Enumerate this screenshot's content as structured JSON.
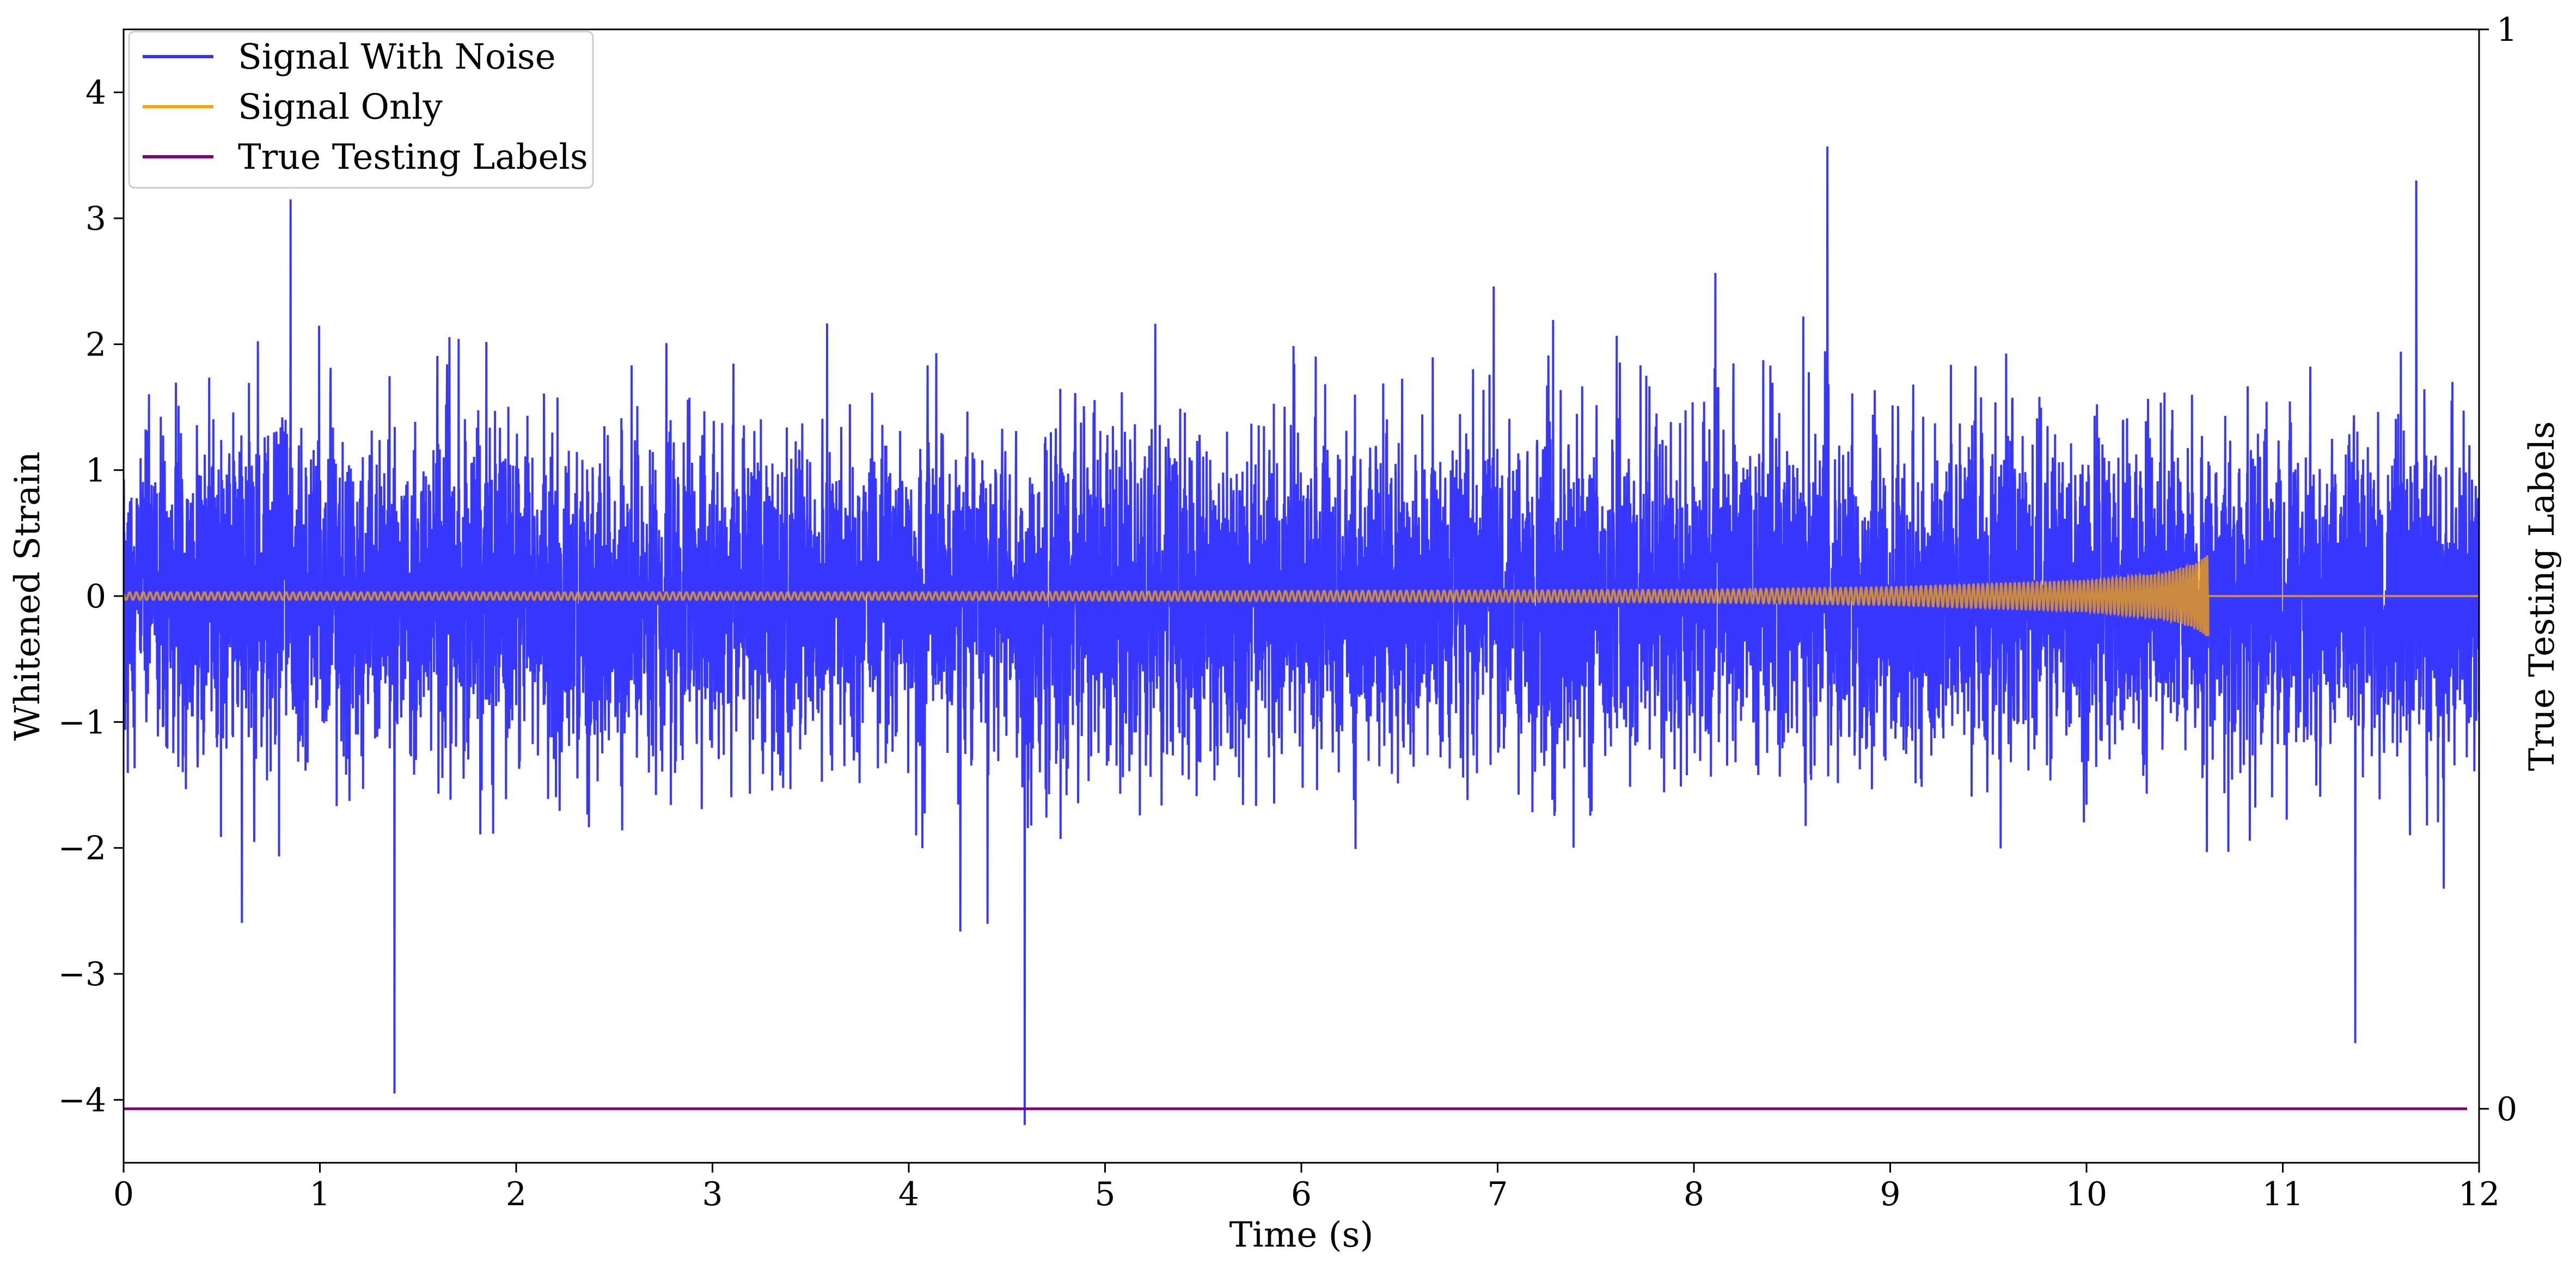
{
  "chart_data": {
    "type": "line",
    "title": "",
    "xlabel": "Time (s)",
    "ylabel": "Whitened Strain",
    "y2label": "True Testing Labels",
    "xlim": [
      0,
      12
    ],
    "ylim": [
      -4.5,
      4.5
    ],
    "y2lim": [
      -0.05,
      1.0
    ],
    "x_ticks": [
      0,
      1,
      2,
      3,
      4,
      5,
      6,
      7,
      8,
      9,
      10,
      11,
      12
    ],
    "y_ticks": [
      -4,
      -3,
      -2,
      -1,
      0,
      1,
      2,
      3,
      4
    ],
    "y_tick_labels": [
      "−4",
      "−3",
      "−2",
      "−1",
      "0",
      "1",
      "2",
      "3",
      "4"
    ],
    "y2_ticks": [
      0,
      1
    ],
    "y2_tick_labels": [
      "0",
      "1"
    ],
    "grid": false,
    "legend_position": "top-left",
    "series": [
      {
        "name": "Signal With Noise",
        "color": "#3333ff",
        "axis": "left",
        "kind": "noise",
        "x_range": [
          0,
          12
        ],
        "mean": 0,
        "std_dev": 0.65,
        "min": -4.2,
        "max": 3.57,
        "notable_extrema": [
          {
            "x": 0.85,
            "y": 3.15
          },
          {
            "x": 1.38,
            "y": -3.95
          },
          {
            "x": 4.59,
            "y": -4.2
          },
          {
            "x": 8.68,
            "y": 3.57
          },
          {
            "x": 11.68,
            "y": 3.3
          },
          {
            "x": 11.37,
            "y": -3.55
          }
        ]
      },
      {
        "name": "Signal Only",
        "color": "#ffa500",
        "axis": "left",
        "kind": "chirp",
        "x_range": [
          0,
          10.62
        ],
        "envelope": [
          {
            "x": 0,
            "y": 0.03
          },
          {
            "x": 4,
            "y": 0.03
          },
          {
            "x": 8,
            "y": 0.05
          },
          {
            "x": 9,
            "y": 0.07
          },
          {
            "x": 10,
            "y": 0.12
          },
          {
            "x": 10.4,
            "y": 0.18
          },
          {
            "x": 10.55,
            "y": 0.25
          },
          {
            "x": 10.62,
            "y": 0.33
          }
        ],
        "after_merger_value": 0
      },
      {
        "name": "True Testing Labels",
        "color": "#800080",
        "axis": "right",
        "kind": "constant",
        "x": [
          0,
          12
        ],
        "y": [
          0,
          0
        ]
      }
    ]
  }
}
